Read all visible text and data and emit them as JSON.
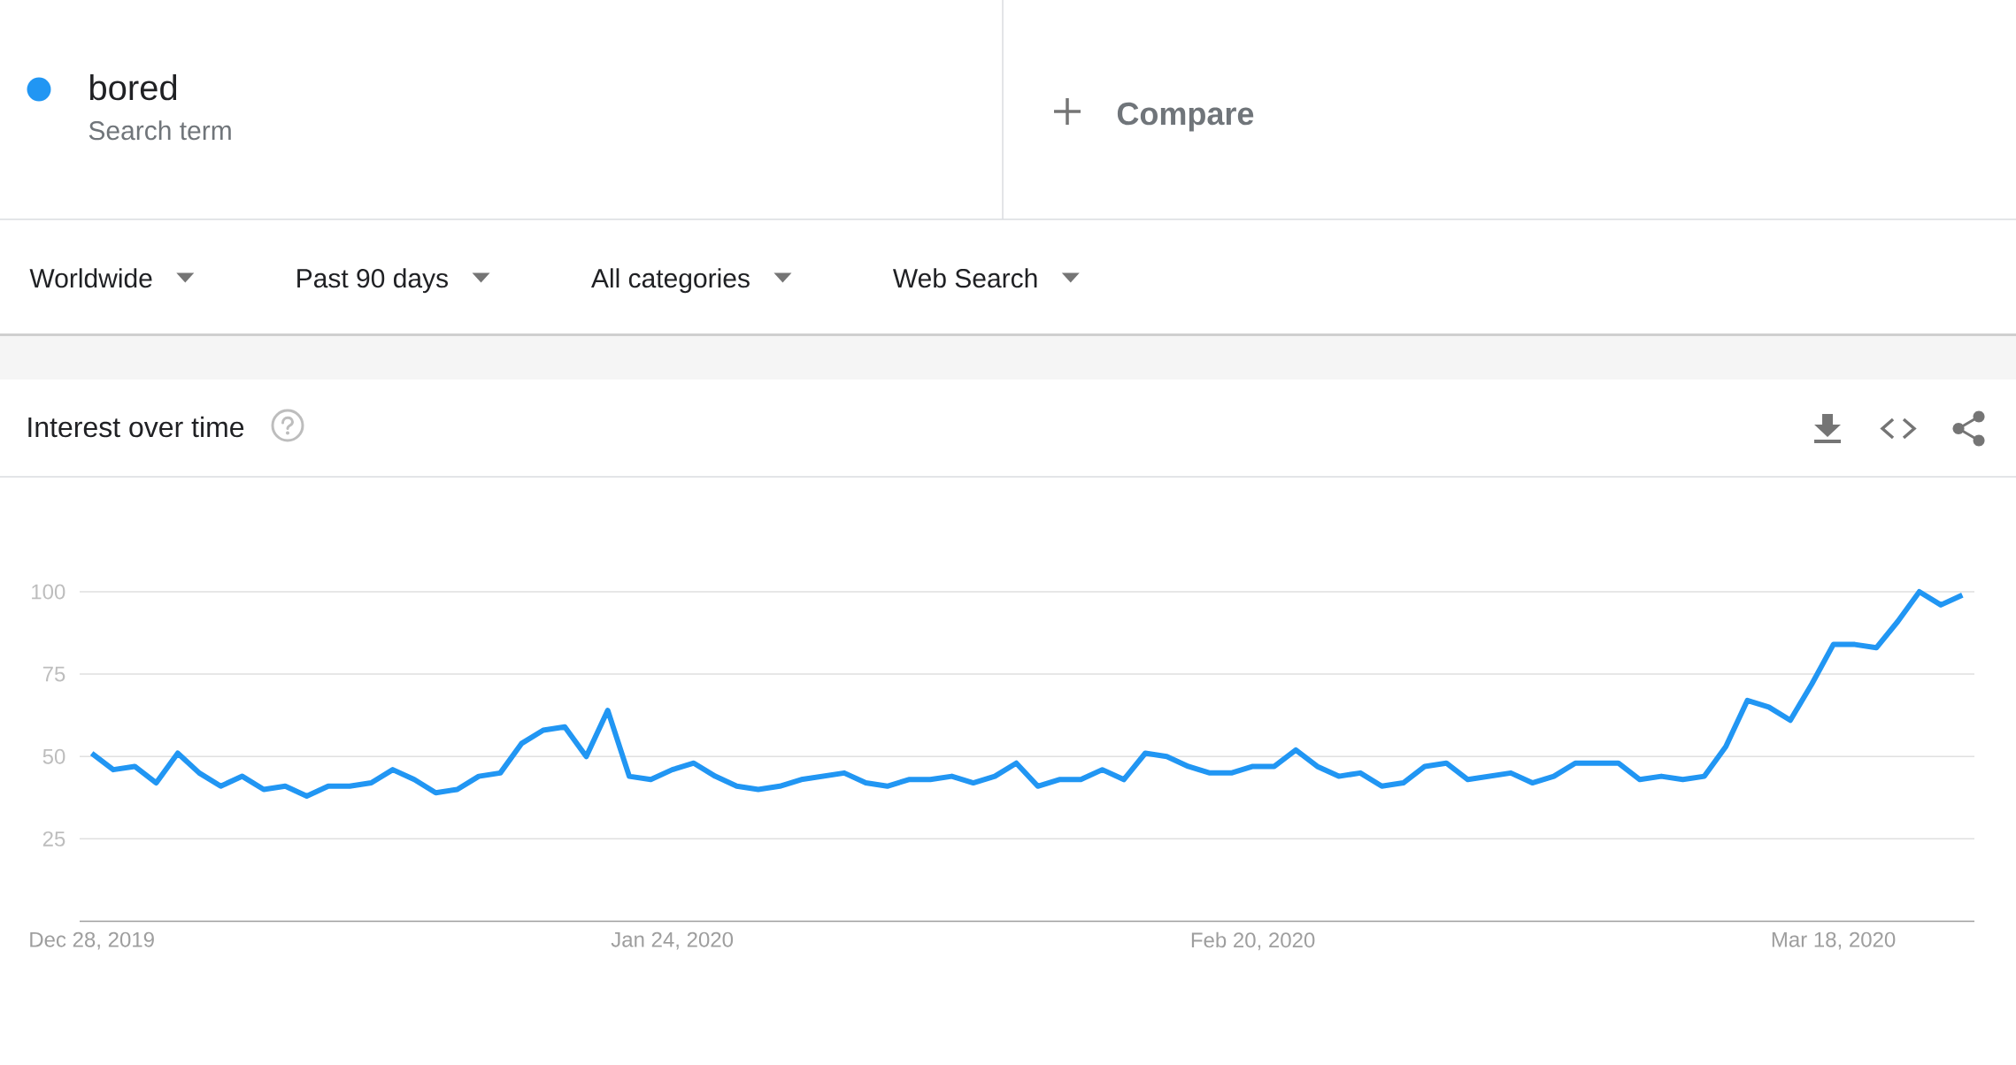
{
  "chart_data": {
    "type": "line",
    "title": "Interest over time",
    "annotations": [
      "Search term",
      "Compare",
      "Worldwide",
      "Past 90 days",
      "All categories",
      "Web Search"
    ],
    "x": [
      "2019-12-28",
      "2019-12-29",
      "2019-12-30",
      "2019-12-31",
      "2020-01-01",
      "2020-01-02",
      "2020-01-03",
      "2020-01-04",
      "2020-01-05",
      "2020-01-06",
      "2020-01-07",
      "2020-01-08",
      "2020-01-09",
      "2020-01-10",
      "2020-01-11",
      "2020-01-12",
      "2020-01-13",
      "2020-01-14",
      "2020-01-15",
      "2020-01-16",
      "2020-01-17",
      "2020-01-18",
      "2020-01-19",
      "2020-01-20",
      "2020-01-21",
      "2020-01-22",
      "2020-01-23",
      "2020-01-24",
      "2020-01-25",
      "2020-01-26",
      "2020-01-27",
      "2020-01-28",
      "2020-01-29",
      "2020-01-30",
      "2020-01-31",
      "2020-02-01",
      "2020-02-02",
      "2020-02-03",
      "2020-02-04",
      "2020-02-05",
      "2020-02-06",
      "2020-02-07",
      "2020-02-08",
      "2020-02-09",
      "2020-02-10",
      "2020-02-11",
      "2020-02-12",
      "2020-02-13",
      "2020-02-14",
      "2020-02-15",
      "2020-02-16",
      "2020-02-17",
      "2020-02-18",
      "2020-02-19",
      "2020-02-20",
      "2020-02-21",
      "2020-02-22",
      "2020-02-23",
      "2020-02-24",
      "2020-02-25",
      "2020-02-26",
      "2020-02-27",
      "2020-02-28",
      "2020-02-29",
      "2020-03-01",
      "2020-03-02",
      "2020-03-03",
      "2020-03-04",
      "2020-03-05",
      "2020-03-06",
      "2020-03-07",
      "2020-03-08",
      "2020-03-09",
      "2020-03-10",
      "2020-03-11",
      "2020-03-12",
      "2020-03-13",
      "2020-03-14",
      "2020-03-15",
      "2020-03-16",
      "2020-03-17",
      "2020-03-18",
      "2020-03-19",
      "2020-03-20",
      "2020-03-21",
      "2020-03-22",
      "2020-03-23",
      "2020-03-24"
    ],
    "series": [
      {
        "name": "bored",
        "color": "#2196f3",
        "values": [
          51,
          46,
          47,
          42,
          51,
          45,
          41,
          44,
          40,
          41,
          38,
          41,
          41,
          42,
          46,
          43,
          39,
          40,
          44,
          45,
          54,
          58,
          59,
          50,
          64,
          44,
          43,
          46,
          48,
          44,
          41,
          40,
          41,
          43,
          44,
          45,
          42,
          41,
          43,
          43,
          44,
          42,
          44,
          48,
          41,
          43,
          43,
          46,
          43,
          51,
          50,
          47,
          45,
          45,
          47,
          47,
          52,
          47,
          44,
          45,
          41,
          42,
          47,
          48,
          43,
          44,
          45,
          42,
          44,
          48,
          48,
          48,
          43,
          44,
          43,
          44,
          53,
          67,
          65,
          61,
          72,
          84,
          84,
          83,
          91,
          100,
          96,
          99
        ]
      }
    ],
    "xlim": [
      "2019-12-27T10:30",
      "2020-03-24T13:30"
    ],
    "ylim": [
      0,
      100
    ],
    "xticks": [
      {
        "value": "2019-12-28",
        "label": "Dec 28, 2019"
      },
      {
        "value": "2020-01-24",
        "label": "Jan 24, 2020"
      },
      {
        "value": "2020-02-20",
        "label": "Feb 20, 2020"
      },
      {
        "value": "2020-03-18",
        "label": "Mar 18, 2020"
      }
    ],
    "yticks": [
      25,
      50,
      75,
      100
    ],
    "grid": "y",
    "legend": "top left"
  }
}
